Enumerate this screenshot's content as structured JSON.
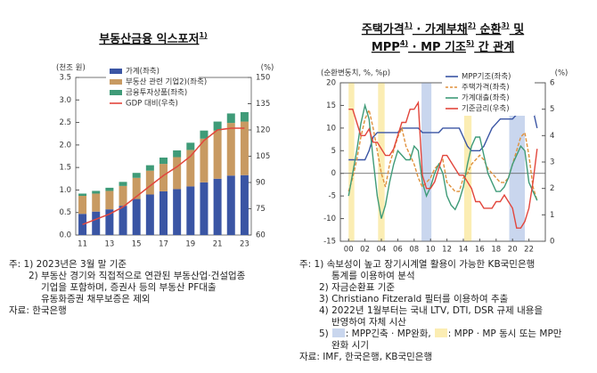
{
  "chart_data": [
    {
      "type": "bar",
      "stacked": true,
      "title": [
        "부동산금융 익스포저",
        "1)"
      ],
      "ylabel": "(천조 원)",
      "y2label": "(%)",
      "categories": [
        "11",
        null,
        "13",
        null,
        "15",
        null,
        "17",
        null,
        "19",
        null,
        "21",
        null,
        "23"
      ],
      "series": [
        {
          "name": "가계(좌축)",
          "color": "#3a55a4",
          "values": [
            0.47,
            0.52,
            0.57,
            0.65,
            0.8,
            0.9,
            0.97,
            1.02,
            1.08,
            1.17,
            1.25,
            1.32,
            1.33
          ]
        },
        {
          "name": "부동산 관련 기업2)(좌축)",
          "color": "#c89a62",
          "values": [
            0.4,
            0.4,
            0.41,
            0.44,
            0.47,
            0.53,
            0.61,
            0.71,
            0.81,
            0.97,
            1.07,
            1.17,
            1.19
          ]
        },
        {
          "name": "금융투자상품(좌축)",
          "color": "#3f9b78",
          "values": [
            0.05,
            0.06,
            0.07,
            0.09,
            0.11,
            0.12,
            0.14,
            0.15,
            0.16,
            0.18,
            0.2,
            0.21,
            0.21
          ]
        },
        {
          "name": "GDP 대비(우축)",
          "color": "#e2463c",
          "type": "line",
          "axis": "y2",
          "values": [
            66,
            69,
            72,
            76,
            82,
            88,
            94,
            99,
            105,
            114,
            120,
            121,
            121
          ]
        }
      ],
      "ylim": [
        0,
        3.5
      ],
      "yticks": [
        {
          "value": 0,
          "label": "0.0"
        },
        0.5,
        {
          "value": 1,
          "label": "1.0"
        },
        1.5,
        {
          "value": 2,
          "label": "2.0"
        },
        2.5,
        {
          "value": 3,
          "label": "3.0"
        },
        3.5
      ],
      "y2lim": [
        60,
        150
      ],
      "y2ticks": [
        60,
        75,
        90,
        105,
        120,
        135,
        150
      ],
      "legend": "upper left"
    },
    {
      "type": "line",
      "title": [
        [
          "주택가격",
          "1)",
          " · 가계부채",
          "2)",
          " 순환",
          "3)",
          " 및"
        ],
        [
          "MPP",
          "4)",
          " · MP 기조",
          "5)",
          " 간 관계"
        ]
      ],
      "ylabel": "(순환변동치, %, %p)",
      "y2label": "(%)",
      "x": [
        2000,
        2000.5,
        2001,
        2001.5,
        2002,
        2002.5,
        2003,
        2003.5,
        2004,
        2004.5,
        2005,
        2005.5,
        2006,
        2006.5,
        2007,
        2007.5,
        2008,
        2008.5,
        2009,
        2009.5,
        2010,
        2010.5,
        2011,
        2011.5,
        2012,
        2012.5,
        2013,
        2013.5,
        2014,
        2014.5,
        2015,
        2015.5,
        2016,
        2016.5,
        2017,
        2017.5,
        2018,
        2018.5,
        2019,
        2019.5,
        2020,
        2020.5,
        2021,
        2021.5,
        2022,
        2022.5,
        2023
      ],
      "series": [
        {
          "name": "MPP기조(좌축)",
          "color": "#3a55a4",
          "values": [
            3,
            3,
            3,
            3,
            3,
            5,
            8,
            9,
            9,
            9,
            9,
            9,
            9,
            10,
            10,
            10,
            10,
            10,
            9,
            9,
            9,
            9,
            9,
            10,
            10,
            10,
            10,
            10,
            8,
            6,
            5,
            5,
            5,
            6,
            8,
            10,
            11,
            12,
            12,
            12,
            12,
            13,
            14,
            15,
            15,
            14,
            10
          ]
        },
        {
          "name": "주택가격(좌축)",
          "color": "#e0913c",
          "linestyle": "dashed",
          "values": [
            -4,
            -1,
            3,
            8,
            12,
            14,
            10,
            5,
            0,
            -3,
            2,
            5,
            8,
            10,
            6,
            4,
            2,
            -1,
            -3,
            -2,
            -1,
            1,
            2,
            3,
            -2,
            -3,
            -4,
            -4,
            -1,
            0,
            2,
            3,
            4,
            3,
            1,
            0,
            -1,
            -2,
            -2,
            -1,
            2,
            5,
            8,
            9,
            4,
            -3,
            -6
          ]
        },
        {
          "name": "가계대출(좌축)",
          "color": "#3f9b78",
          "values": [
            -5,
            0,
            5,
            11,
            15,
            12,
            3,
            -5,
            -10,
            -7,
            -2,
            2,
            5,
            4,
            3,
            3,
            6,
            5,
            -2,
            -5,
            -3,
            0,
            2,
            0,
            -5,
            -7,
            -8,
            -6,
            -3,
            2,
            6,
            8,
            8,
            4,
            0,
            -2,
            -4,
            -4,
            -3,
            -1,
            2,
            4,
            6,
            5,
            -2,
            -4,
            -6
          ]
        },
        {
          "name": "기준금리(우축)",
          "color": "#e2463c",
          "axis": "y2",
          "values": [
            5.0,
            5.0,
            4.5,
            4.0,
            4.0,
            4.25,
            3.75,
            3.75,
            3.5,
            3.25,
            3.25,
            3.5,
            4.0,
            4.5,
            4.5,
            5.0,
            5.0,
            5.25,
            2.5,
            2.0,
            2.0,
            2.25,
            2.75,
            3.25,
            3.25,
            3.0,
            2.75,
            2.5,
            2.5,
            2.25,
            2.0,
            1.5,
            1.5,
            1.25,
            1.25,
            1.25,
            1.5,
            1.5,
            1.75,
            1.5,
            1.25,
            0.5,
            0.5,
            0.75,
            1.25,
            2.25,
            3.5
          ]
        }
      ],
      "shaded_periods": [
        {
          "color": "#c9d6ee",
          "ranges": [
            [
              2008.9,
              2010.1
            ],
            [
              2019.6,
              2021.5
            ]
          ]
        },
        {
          "color": "#fbedb3",
          "ranges": [
            [
              2000.0,
              2000.7
            ],
            [
              2003.6,
              2004.4
            ],
            [
              2014.1,
              2015.0
            ]
          ]
        }
      ],
      "xlim": [
        1999,
        2024
      ],
      "xticks": [
        {
          "value": 2000,
          "label": "00"
        },
        {
          "value": 2002,
          "label": "02"
        },
        {
          "value": 2004,
          "label": "04"
        },
        {
          "value": 2006,
          "label": "06"
        },
        {
          "value": 2008,
          "label": "08"
        },
        {
          "value": 2010,
          "label": "10"
        },
        {
          "value": 2012,
          "label": "12"
        },
        {
          "value": 2014,
          "label": "14"
        },
        {
          "value": 2016,
          "label": "16"
        },
        {
          "value": 2018,
          "label": "18"
        },
        {
          "value": 2020,
          "label": "20"
        },
        {
          "value": 2022,
          "label": "22"
        }
      ],
      "ylim": [
        -15,
        20
      ],
      "yticks": [
        -15,
        -10,
        -5,
        0,
        5,
        10,
        15,
        20
      ],
      "y2lim": [
        0,
        6
      ],
      "y2ticks": [
        0,
        1,
        2,
        3,
        4,
        5,
        6
      ],
      "legend": "upper right"
    }
  ],
  "notes_left": [
    "주: 1) 2023년은 3월 말 기준",
    "2) 부동산 경기와 직접적으로 연관된 부동산업·건설업종",
    "기업을 포함하며, 증권사 등의 부동산 PF대출",
    "유동화증권 채무보증은 제외",
    "자료: 한국은행"
  ],
  "notes_right": [
    "주: 1) 속보성이 높고 장기시계열 활용이 가능한 KB국민은행",
    "통계를 이용하여 분석",
    "2) 자금순환표 기준",
    "3) Christiano Fitzerald 필터를 이용하여 추출",
    "4) 2022년 1월부터는 국내 LTV, DTI, DSR 규제 내용을",
    "반영하여 자체 시산",
    "5)",
    ": MPP긴축 · MP완화,",
    ": MPP · MP 동시 또는 MP만",
    "완화 시기",
    "자료: IMF, 한국은행, KB국민은행"
  ]
}
